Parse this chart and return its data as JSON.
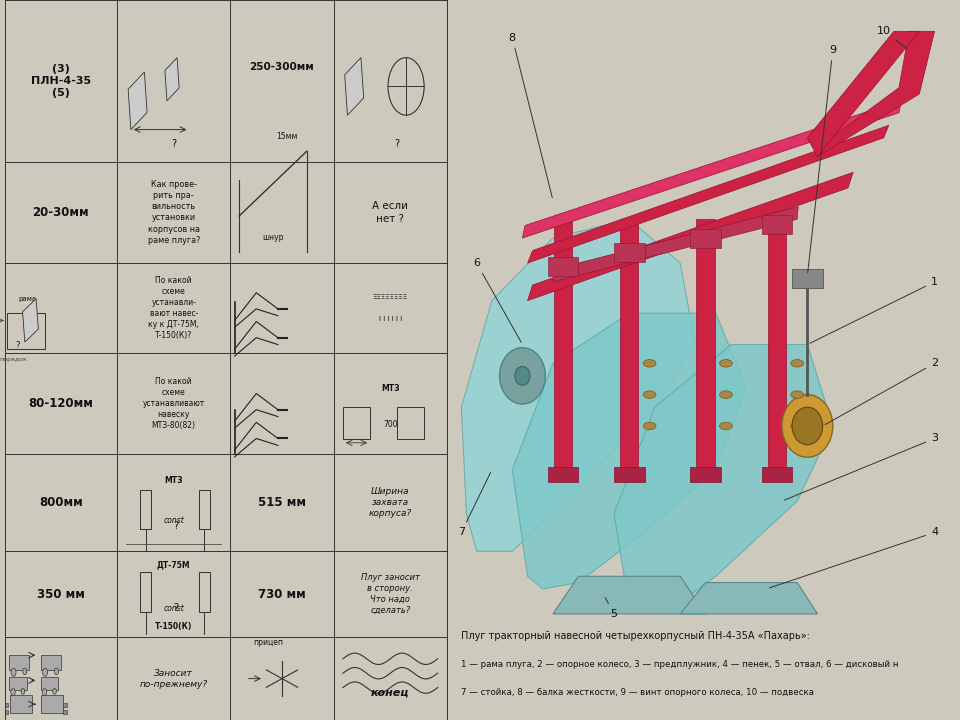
{
  "fig_width": 9.6,
  "fig_height": 7.2,
  "bg_color": "#cdc9bc",
  "table_bg": "#cdc9bc",
  "right_bg": "#e8e4d8",
  "frame_color": "#cc2244",
  "frame_dark": "#991133",
  "blade_color": "#88cccc",
  "blade_light": "#aadddd",
  "line_color": "#333333",
  "text_color": "#111111",
  "caption1": "Плуг тракторный навесной четырехкорпусный ПН-4-35А «Пахарь»:",
  "caption2": "1 — рама плуга, 2 — опорное колесо, 3 — предплужник, 4 — пенек, 5 — отвал, 6 — дисковый н",
  "caption3": "7 — стойка, 8 — балка жесткости, 9 — винт опорного колеса, 10 — подвеска"
}
